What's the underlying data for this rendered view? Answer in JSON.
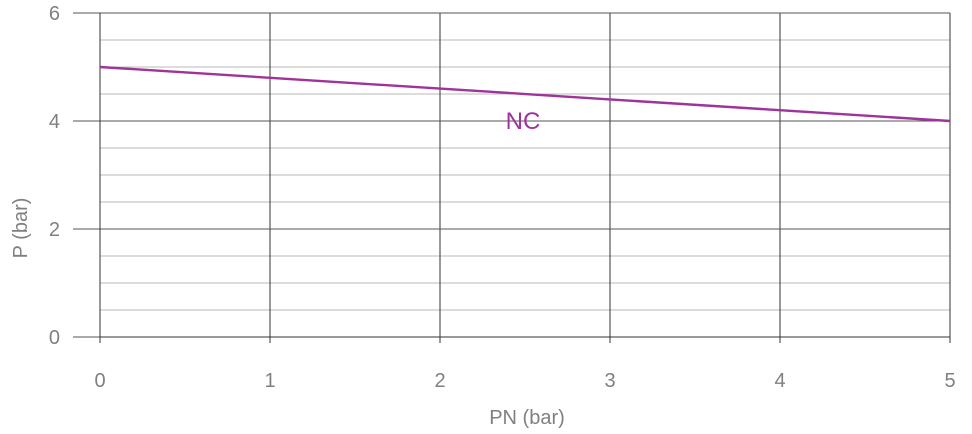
{
  "chart_data": {
    "type": "line",
    "xlabel": "PN (bar)",
    "ylabel": "P (bar)",
    "xlim": [
      0,
      5
    ],
    "ylim": [
      0,
      6
    ],
    "x_ticks": [
      0,
      1,
      2,
      3,
      4,
      5
    ],
    "y_ticks": [
      0,
      2,
      4,
      6
    ],
    "x_tick_labels": [
      "0",
      "1",
      "2",
      "3",
      "4",
      "5"
    ],
    "y_tick_labels": [
      "0",
      "2",
      "4",
      "6"
    ],
    "y_minor_step": 0.5,
    "grid": true,
    "series": [
      {
        "name": "NC",
        "color": "#a0339a",
        "x": [
          0,
          1,
          2,
          3,
          4,
          5
        ],
        "y": [
          5.0,
          4.8,
          4.6,
          4.4,
          4.2,
          4.0
        ]
      }
    ]
  }
}
